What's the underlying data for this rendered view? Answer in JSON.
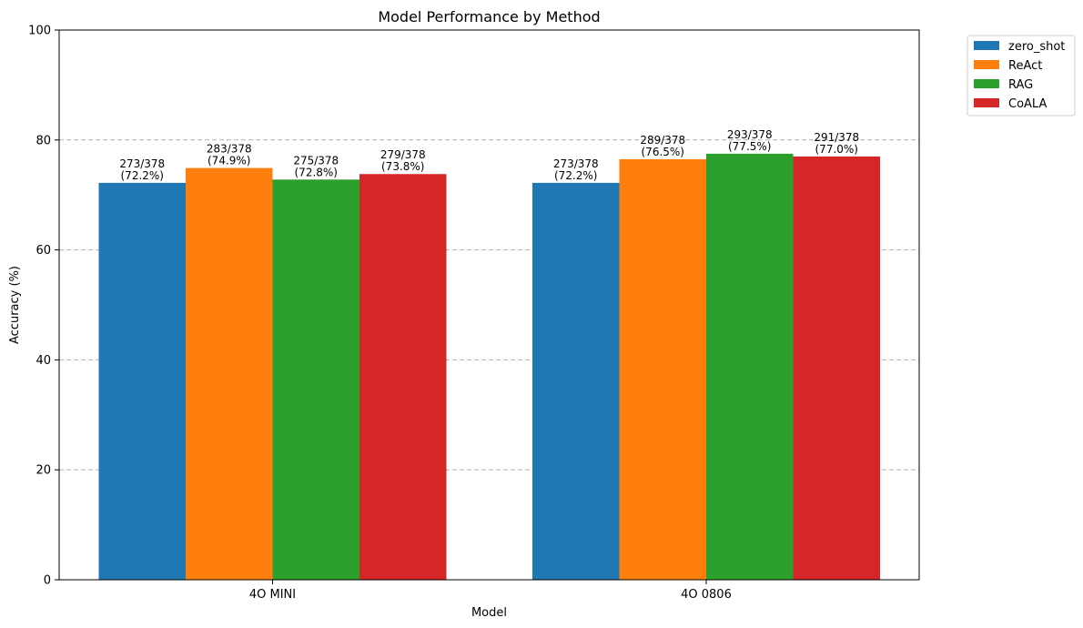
{
  "chart_data": {
    "type": "bar",
    "title": "Model Performance by Method",
    "xlabel": "Model",
    "ylabel": "Accuracy (%)",
    "ylim": [
      0,
      100
    ],
    "yticks": [
      0,
      20,
      40,
      60,
      80,
      100
    ],
    "grid": "y-dashed",
    "legend_position": "outside-top-right",
    "categories": [
      "4O MINI",
      "4O 0806"
    ],
    "series": [
      {
        "name": "zero_shot",
        "color": "#1f77b4",
        "values": [
          72.2,
          72.2
        ],
        "labels": [
          "273/378",
          "273/378"
        ],
        "pct_labels": [
          "(72.2%)",
          "(72.2%)"
        ]
      },
      {
        "name": "ReAct",
        "color": "#ff7f0e",
        "values": [
          74.9,
          76.5
        ],
        "labels": [
          "283/378",
          "289/378"
        ],
        "pct_labels": [
          "(74.9%)",
          "(76.5%)"
        ]
      },
      {
        "name": "RAG",
        "color": "#2ca02c",
        "values": [
          72.8,
          77.5
        ],
        "labels": [
          "275/378",
          "293/378"
        ],
        "pct_labels": [
          "(72.8%)",
          "(77.5%)"
        ]
      },
      {
        "name": "CoALA",
        "color": "#d62728",
        "values": [
          73.8,
          77.0
        ],
        "labels": [
          "279/378",
          "291/378"
        ],
        "pct_labels": [
          "(73.8%)",
          "(77.0%)"
        ]
      }
    ]
  }
}
